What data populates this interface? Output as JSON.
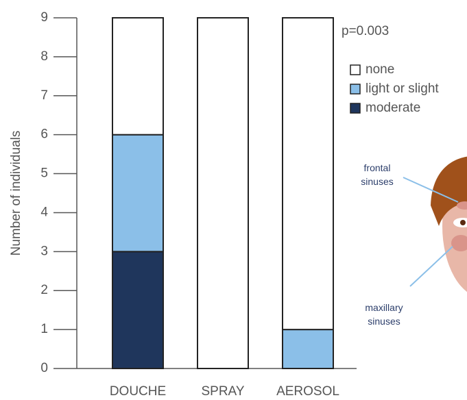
{
  "chart_data": {
    "type": "stacked_bar",
    "annotation": "p=0.003",
    "y_label": "Number of individuals",
    "categories": [
      "DOUCHE",
      "SPRAY",
      "AEROSOL"
    ],
    "series": [
      {
        "name": "moderate",
        "color": "#1f365c",
        "values": [
          3,
          0,
          0
        ]
      },
      {
        "name": "light or slight",
        "color": "#8bbfe8",
        "values": [
          3,
          0,
          1
        ]
      },
      {
        "name": "none",
        "color": "#ffffff",
        "values": [
          3,
          9,
          8
        ]
      }
    ],
    "ylim": [
      0,
      9
    ],
    "yticks": [
      0,
      1,
      2,
      3,
      4,
      5,
      6,
      7,
      8,
      9
    ],
    "illustration_labels": [
      "frontal sinuses",
      "maxillary sinuses"
    ]
  }
}
